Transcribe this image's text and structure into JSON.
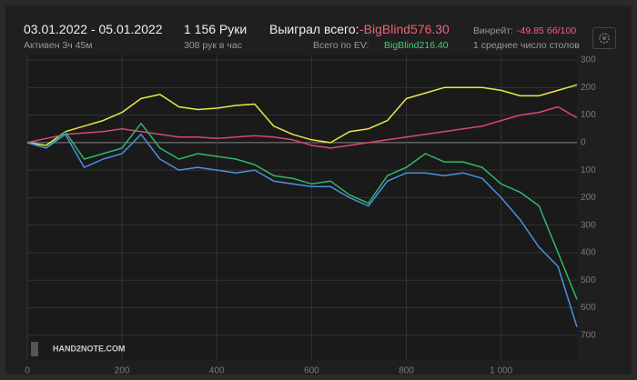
{
  "header": {
    "dates": "03.01.2022 - 05.01.2022",
    "active": "Активен 3ч 45м",
    "hands": "1 156 Руки",
    "per_hour": "308 рук в час",
    "won_label": "Выиграл всего:",
    "won_value": "-BigBlind576.30",
    "ev_label": "Всего по EV:",
    "ev_value": "BigBlind216.40",
    "winrate_label": "Винрейт:",
    "winrate_value": "-49.85 бб/100",
    "tables": "1 среднее число столов",
    "logo": "HAND2NOTE.COM"
  },
  "chart_data": {
    "type": "line",
    "x": [
      0,
      40,
      80,
      120,
      160,
      200,
      240,
      280,
      320,
      360,
      400,
      440,
      480,
      520,
      560,
      600,
      640,
      680,
      720,
      760,
      800,
      840,
      880,
      920,
      960,
      1000,
      1040,
      1080,
      1120,
      1160
    ],
    "series": [
      {
        "color": "#e8e84a",
        "values": [
          0,
          -10,
          40,
          60,
          80,
          110,
          160,
          175,
          130,
          120,
          125,
          135,
          140,
          60,
          30,
          10,
          0,
          40,
          50,
          80,
          160,
          180,
          200,
          200,
          200,
          190,
          170,
          170,
          190,
          210
        ]
      },
      {
        "color": "#d9486e",
        "values": [
          0,
          15,
          30,
          35,
          40,
          50,
          40,
          30,
          20,
          20,
          15,
          20,
          25,
          20,
          10,
          -10,
          -20,
          -10,
          0,
          10,
          20,
          30,
          40,
          50,
          60,
          80,
          100,
          110,
          130,
          90
        ]
      },
      {
        "color": "#2fb86a",
        "values": [
          0,
          -20,
          40,
          -60,
          -40,
          -20,
          70,
          -20,
          -60,
          -40,
          -50,
          -60,
          -80,
          -120,
          -130,
          -150,
          -140,
          -190,
          -220,
          -120,
          -90,
          -40,
          -70,
          -70,
          -90,
          -150,
          -180,
          -230,
          -400,
          -570
        ]
      },
      {
        "color": "#4a90e2",
        "values": [
          0,
          -20,
          30,
          -90,
          -60,
          -40,
          30,
          -60,
          -100,
          -90,
          -100,
          -110,
          -100,
          -140,
          -150,
          -160,
          -160,
          -200,
          -230,
          -140,
          -110,
          -110,
          -120,
          -110,
          -130,
          -200,
          -280,
          -380,
          -450,
          -670
        ]
      }
    ],
    "xlim": [
      0,
      1160
    ],
    "xticks": [
      0,
      200,
      400,
      600,
      800,
      {
        "value": 1000,
        "label": "1 000"
      }
    ],
    "ylim": [
      -790,
      320
    ],
    "yticks": [
      300,
      200,
      100,
      0,
      {
        "value": -100,
        "label": "100"
      },
      {
        "value": -200,
        "label": "200"
      },
      {
        "value": -300,
        "label": "300"
      },
      {
        "value": -400,
        "label": "400"
      },
      {
        "value": -500,
        "label": "500"
      },
      {
        "value": -600,
        "label": "600"
      },
      {
        "value": -700,
        "label": "700"
      }
    ],
    "grid": true
  }
}
